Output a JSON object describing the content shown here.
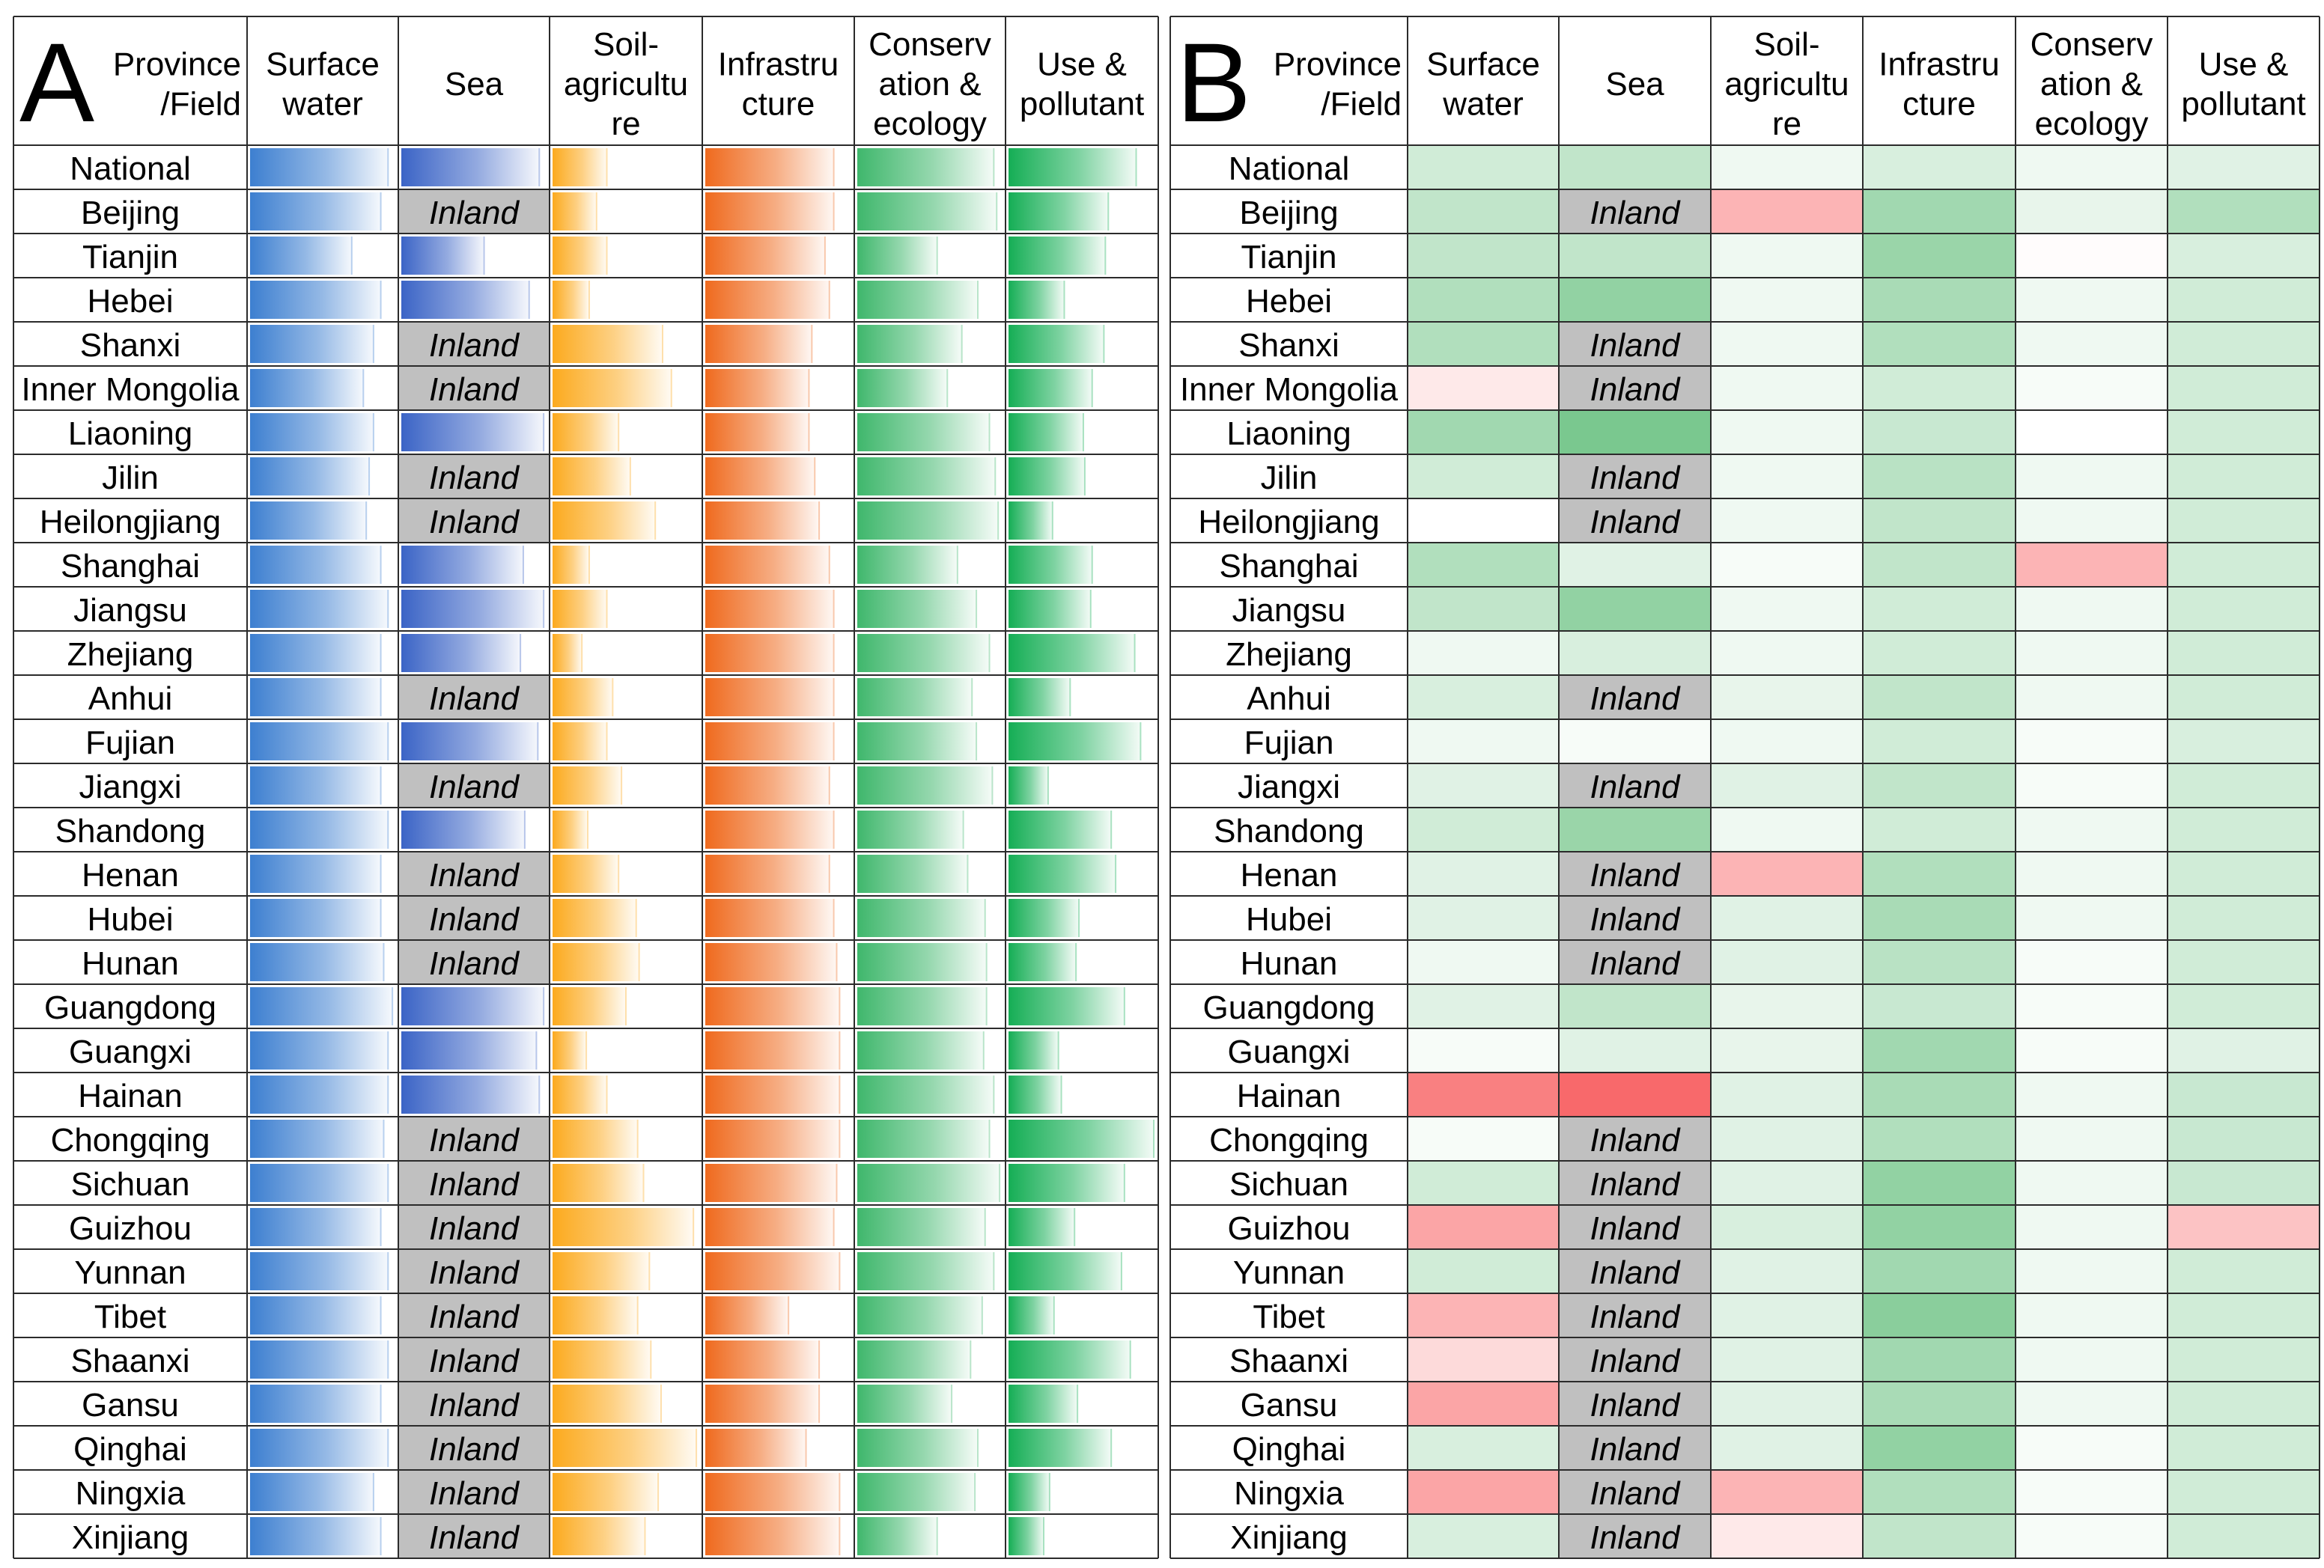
{
  "chart_data": [
    {
      "panel": "A",
      "type": "table",
      "subtype": "data-bar table",
      "header_corner": "Province\n/Field",
      "columns": [
        "Surface\nwater",
        "Sea",
        "Soil-\nagricultu\nre",
        "Infrastru\ncture",
        "Conserv\nation &\necology",
        "Use &\npollutant"
      ],
      "rows": [
        "National",
        "Beijing",
        "Tianjin",
        "Hebei",
        "Shanxi",
        "Inner Mongolia",
        "Liaoning",
        "Jilin",
        "Heilongjiang",
        "Shanghai",
        "Jiangsu",
        "Zhejiang",
        "Anhui",
        "Fujian",
        "Jiangxi",
        "Shandong",
        "Henan",
        "Hubei",
        "Hunan",
        "Guangdong",
        "Guangxi",
        "Hainan",
        "Chongqing",
        "Sichuan",
        "Guizhou",
        "Yunnan",
        "Tibet",
        "Shaanxi",
        "Gansu",
        "Qinghai",
        "Ningxia",
        "Xinjiang"
      ],
      "missing_label": "Inland",
      "value_range": [
        0,
        1
      ],
      "values": [
        [
          0.95,
          0.95,
          0.37,
          0.88,
          0.94,
          0.87
        ],
        [
          0.9,
          null,
          0.3,
          0.88,
          0.96,
          0.68
        ],
        [
          0.7,
          0.57,
          0.37,
          0.82,
          0.55,
          0.66
        ],
        [
          0.9,
          0.88,
          0.25,
          0.85,
          0.83,
          0.38
        ],
        [
          0.85,
          null,
          0.75,
          0.73,
          0.72,
          0.65
        ],
        [
          0.78,
          null,
          0.81,
          0.71,
          0.62,
          0.57
        ],
        [
          0.85,
          0.98,
          0.45,
          0.71,
          0.91,
          0.51
        ],
        [
          0.82,
          null,
          0.53,
          0.75,
          0.95,
          0.52
        ],
        [
          0.8,
          null,
          0.7,
          0.78,
          0.97,
          0.3
        ],
        [
          0.9,
          0.84,
          0.25,
          0.85,
          0.69,
          0.57
        ],
        [
          0.95,
          0.98,
          0.37,
          0.88,
          0.82,
          0.56
        ],
        [
          0.9,
          0.82,
          0.2,
          0.88,
          0.91,
          0.86
        ],
        [
          0.9,
          null,
          0.41,
          0.88,
          0.79,
          0.42
        ],
        [
          0.95,
          0.94,
          0.37,
          0.88,
          0.82,
          0.9
        ],
        [
          0.9,
          null,
          0.47,
          0.85,
          0.93,
          0.27
        ],
        [
          0.95,
          0.85,
          0.24,
          0.88,
          0.73,
          0.7
        ],
        [
          0.9,
          null,
          0.45,
          0.85,
          0.76,
          0.73
        ],
        [
          0.9,
          null,
          0.57,
          0.88,
          0.88,
          0.48
        ],
        [
          0.92,
          null,
          0.59,
          0.9,
          0.89,
          0.46
        ],
        [
          0.98,
          0.98,
          0.5,
          0.92,
          0.89,
          0.79
        ],
        [
          0.95,
          0.93,
          0.23,
          0.92,
          0.87,
          0.34
        ],
        [
          0.95,
          0.95,
          0.37,
          0.92,
          0.94,
          0.36
        ],
        [
          0.92,
          null,
          0.58,
          0.92,
          0.91,
          0.99
        ],
        [
          0.95,
          null,
          0.62,
          0.9,
          0.98,
          0.79
        ],
        [
          0.9,
          null,
          0.96,
          0.88,
          0.88,
          0.45
        ],
        [
          0.95,
          null,
          0.66,
          0.92,
          0.94,
          0.77
        ],
        [
          0.9,
          null,
          0.58,
          0.57,
          0.86,
          0.31
        ],
        [
          0.95,
          null,
          0.67,
          0.78,
          0.78,
          0.83
        ],
        [
          0.9,
          null,
          0.74,
          0.78,
          0.65,
          0.47
        ],
        [
          0.95,
          null,
          0.98,
          0.69,
          0.83,
          0.7
        ],
        [
          0.85,
          null,
          0.72,
          0.92,
          0.81,
          0.28
        ],
        [
          0.9,
          null,
          0.63,
          0.92,
          0.55,
          0.24
        ]
      ],
      "colors": [
        "#3d7fd0",
        "#3b64c6",
        "#fcaa1e",
        "#ef6a1e",
        "#3fb76c",
        "#15ae55"
      ]
    },
    {
      "panel": "B",
      "type": "heatmap",
      "header_corner": "Province\n/Field",
      "columns": [
        "Surface\nwater",
        "Sea",
        "Soil-\nagricultu\nre",
        "Infrastru\ncture",
        "Conserv\nation &\necology",
        "Use &\npollutant"
      ],
      "rows": [
        "National",
        "Beijing",
        "Tianjin",
        "Hebei",
        "Shanxi",
        "Inner Mongolia",
        "Liaoning",
        "Jilin",
        "Heilongjiang",
        "Shanghai",
        "Jiangsu",
        "Zhejiang",
        "Anhui",
        "Fujian",
        "Jiangxi",
        "Shandong",
        "Henan",
        "Hubei",
        "Hunan",
        "Guangdong",
        "Guangxi",
        "Hainan",
        "Chongqing",
        "Sichuan",
        "Guizhou",
        "Yunnan",
        "Tibet",
        "Shaanxi",
        "Gansu",
        "Qinghai",
        "Ningxia",
        "Xinjiang"
      ],
      "missing_label": "Inland",
      "value_range": [
        -1,
        1
      ],
      "color_scale": {
        "negative": "#f8696b",
        "zero": "#ffffff",
        "positive": "#63be7b"
      },
      "values": [
        [
          0.3,
          0.4,
          0.1,
          0.25,
          0.1,
          0.2
        ],
        [
          0.4,
          null,
          -0.5,
          0.6,
          0.15,
          0.5
        ],
        [
          0.4,
          0.4,
          0.1,
          0.65,
          -0.02,
          0.25
        ],
        [
          0.5,
          0.7,
          0.1,
          0.55,
          0.1,
          0.3
        ],
        [
          0.5,
          null,
          0.1,
          0.5,
          0.1,
          0.3
        ],
        [
          -0.15,
          null,
          0.1,
          0.3,
          0.05,
          0.3
        ],
        [
          0.6,
          0.85,
          0.1,
          0.35,
          0.0,
          0.3
        ],
        [
          0.3,
          null,
          0.1,
          0.45,
          0.1,
          0.3
        ],
        [
          0.0,
          null,
          0.1,
          0.4,
          0.1,
          0.3
        ],
        [
          0.5,
          0.2,
          0.05,
          0.4,
          -0.5,
          0.3
        ],
        [
          0.4,
          0.7,
          0.1,
          0.3,
          0.1,
          0.3
        ],
        [
          0.1,
          0.25,
          0.1,
          0.3,
          0.1,
          0.3
        ],
        [
          0.25,
          null,
          0.15,
          0.4,
          0.1,
          0.3
        ],
        [
          0.1,
          0.05,
          0.1,
          0.3,
          0.05,
          0.25
        ],
        [
          0.2,
          null,
          0.2,
          0.4,
          0.05,
          0.3
        ],
        [
          0.3,
          0.65,
          0.1,
          0.3,
          0.1,
          0.3
        ],
        [
          0.2,
          null,
          -0.5,
          0.5,
          0.1,
          0.3
        ],
        [
          0.2,
          null,
          0.2,
          0.55,
          0.1,
          0.3
        ],
        [
          0.1,
          null,
          0.2,
          0.45,
          0.05,
          0.3
        ],
        [
          0.2,
          0.4,
          0.15,
          0.35,
          0.05,
          0.3
        ],
        [
          0.05,
          0.2,
          0.15,
          0.6,
          0.05,
          0.2
        ],
        [
          -0.85,
          -1.0,
          0.2,
          0.55,
          0.1,
          0.35
        ],
        [
          0.05,
          null,
          0.2,
          0.5,
          0.1,
          0.35
        ],
        [
          0.3,
          null,
          0.2,
          0.7,
          0.1,
          0.35
        ],
        [
          -0.6,
          null,
          0.25,
          0.7,
          0.1,
          -0.4
        ],
        [
          0.3,
          null,
          0.2,
          0.6,
          0.1,
          0.3
        ],
        [
          -0.5,
          null,
          0.2,
          0.75,
          0.1,
          0.3
        ],
        [
          -0.25,
          null,
          0.2,
          0.6,
          0.1,
          0.3
        ],
        [
          -0.6,
          null,
          0.2,
          0.55,
          0.1,
          0.3
        ],
        [
          0.25,
          null,
          0.2,
          0.7,
          0.05,
          0.3
        ],
        [
          -0.6,
          null,
          -0.5,
          0.5,
          0.05,
          0.3
        ],
        [
          0.25,
          null,
          -0.15,
          0.4,
          0.05,
          0.3
        ]
      ]
    }
  ]
}
